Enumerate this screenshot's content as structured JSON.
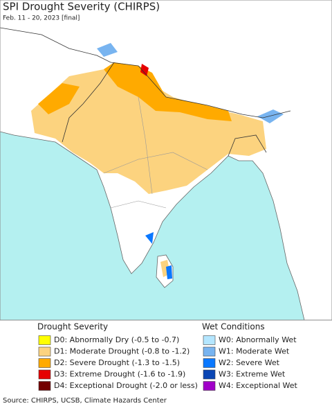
{
  "header": {
    "title": "SPI Drought Severity (CHIRPS)",
    "subtitle": "Feb. 11 - 20, 2023 [final]"
  },
  "legend": {
    "drought": {
      "title": "Drought Severity",
      "items": [
        {
          "label": "D0: Abnormally Dry (-0.5 to -0.7)",
          "color": "#ffff00"
        },
        {
          "label": "D1: Moderate Drought (-0.8 to -1.2)",
          "color": "#fcd37f"
        },
        {
          "label": "D2: Severe Drought (-1.3 to -1.5)",
          "color": "#ffaa00"
        },
        {
          "label": "D3: Extreme Drought (-1.6 to -1.9)",
          "color": "#e60000"
        },
        {
          "label": "D4: Exceptional Drought (-2.0 or less)",
          "color": "#730000"
        }
      ]
    },
    "wet": {
      "title": "Wet Conditions",
      "items": [
        {
          "label": "W0: Abnormally Wet",
          "color": "#b4e6ff"
        },
        {
          "label": "W1: Moderate Wet",
          "color": "#78b4f0"
        },
        {
          "label": "W2: Severe Wet",
          "color": "#0a78ff"
        },
        {
          "label": "W3: Extreme Wet",
          "color": "#0a46b4"
        },
        {
          "label": "W4: Exceptional Wet",
          "color": "#a000c8"
        }
      ]
    }
  },
  "source": "Source: CHIRPS, UCSB, Climate Hazards Center"
}
